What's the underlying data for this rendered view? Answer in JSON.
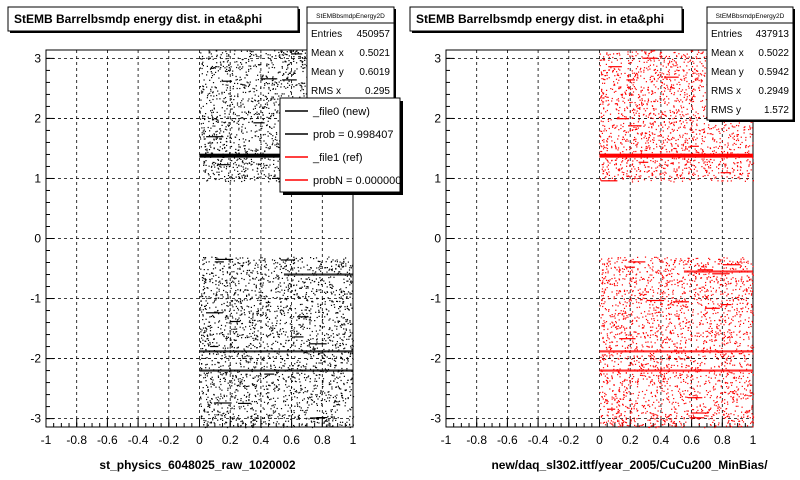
{
  "chart_data": [
    {
      "type": "scatter",
      "title": "StEMB Barrelbsmdp energy dist. in eta&phi",
      "xlabel": "st_physics_6048025_raw_1020002",
      "ylabel": "",
      "xlim": [
        -1,
        1
      ],
      "ylim": [
        -3.14,
        3.14
      ],
      "grid": true,
      "series_color": "#000000",
      "x_ticks": [
        "-1",
        "-0.8",
        "-0.6",
        "-0.4",
        "-0.2",
        "0",
        "0.2",
        "0.4",
        "0.6",
        "0.8",
        "1"
      ],
      "y_ticks": [
        "-3",
        "-2",
        "-1",
        "0",
        "1",
        "2",
        "3"
      ],
      "density_regions": [
        {
          "x": [
            0,
            1
          ],
          "y": [
            0.95,
            3.14
          ]
        },
        {
          "x": [
            0,
            1
          ],
          "y": [
            -3.14,
            -0.3
          ]
        }
      ],
      "bands": [
        {
          "y": 1.38,
          "x": [
            0,
            1
          ]
        },
        {
          "y": -1.88,
          "x": [
            0,
            1
          ]
        },
        {
          "y": -2.2,
          "x": [
            0,
            1
          ]
        },
        {
          "y": -0.6,
          "x": [
            0.55,
            1
          ]
        }
      ],
      "stats": {
        "name": "StEMBbsmdpEnergy2D",
        "rows": [
          {
            "label": "Entries",
            "value": "450957"
          },
          {
            "label": "Mean x",
            "value": "0.5021"
          },
          {
            "label": "Mean y",
            "value": "0.6019"
          },
          {
            "label": "RMS x",
            "value": "0.295"
          }
        ]
      },
      "legend": {
        "position": "top-right",
        "entries": [
          {
            "label": "_file0 (new)",
            "color": "#000000"
          },
          {
            "label": "prob = 0.998407",
            "color": "#000000"
          },
          {
            "label": "_file1 (ref)",
            "color": "#ff0000"
          },
          {
            "label": "probN = 0.000000",
            "color": "#ff0000"
          }
        ]
      }
    },
    {
      "type": "scatter",
      "title": "StEMB Barrelbsmdp energy dist. in eta&phi",
      "xlabel": "new/daq_sl302.ittf/year_2005/CuCu200_MinBias/",
      "ylabel": "",
      "xlim": [
        -1,
        1
      ],
      "ylim": [
        -3.14,
        3.14
      ],
      "grid": true,
      "series_color": "#ff0000",
      "x_ticks": [
        "-1",
        "-0.8",
        "-0.6",
        "-0.4",
        "-0.2",
        "0",
        "0.2",
        "0.4",
        "0.6",
        "0.8",
        "1"
      ],
      "y_ticks": [
        "-3",
        "-2",
        "-1",
        "0",
        "1",
        "2",
        "3"
      ],
      "density_regions": [
        {
          "x": [
            0,
            1
          ],
          "y": [
            0.95,
            3.14
          ]
        },
        {
          "x": [
            0,
            1
          ],
          "y": [
            -3.14,
            -0.3
          ]
        }
      ],
      "bands": [
        {
          "y": 1.38,
          "x": [
            0,
            1
          ]
        },
        {
          "y": -1.88,
          "x": [
            0,
            1
          ]
        },
        {
          "y": -2.2,
          "x": [
            0,
            1
          ]
        },
        {
          "y": -0.55,
          "x": [
            0.55,
            1
          ]
        }
      ],
      "stats": {
        "name": "StEMBbsmdpEnergy2D",
        "rows": [
          {
            "label": "Entries",
            "value": "437913"
          },
          {
            "label": "Mean x",
            "value": "0.5022"
          },
          {
            "label": "Mean y",
            "value": "0.5942"
          },
          {
            "label": "RMS x",
            "value": "0.2949"
          },
          {
            "label": "RMS y",
            "value": "1.572"
          }
        ]
      }
    }
  ]
}
